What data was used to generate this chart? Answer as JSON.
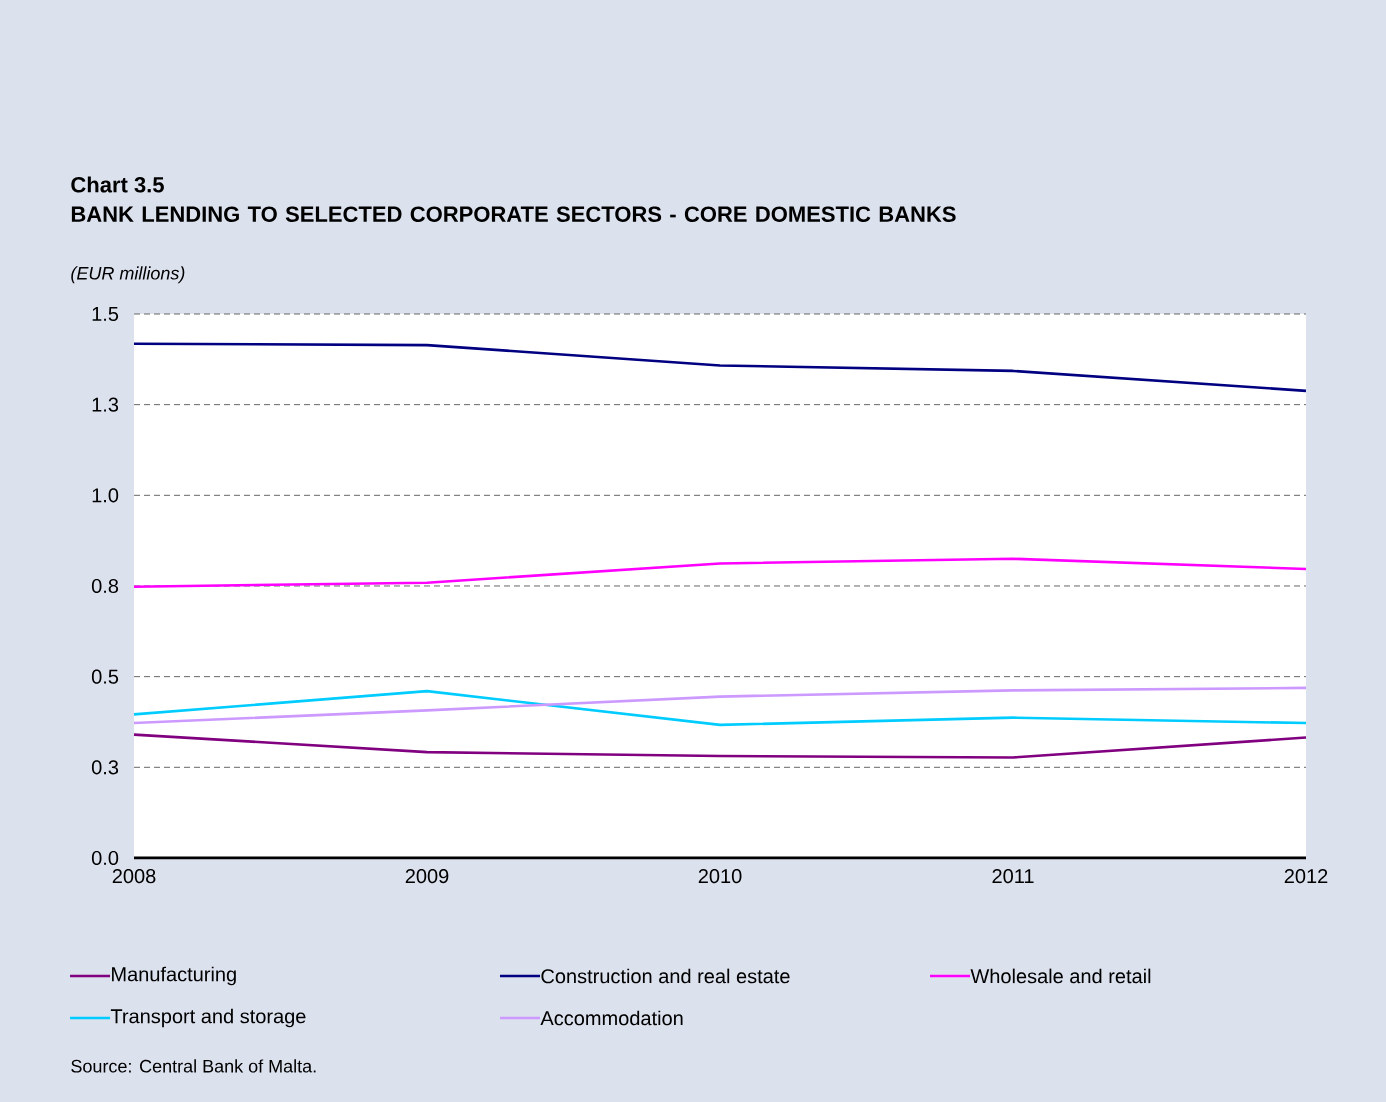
{
  "chart_data": {
    "type": "line",
    "title": "Chart 3.5",
    "subtitle": "BANK LENDING TO SELECTED CORPORATE SECTORS - CORE DOMESTIC BANKS",
    "ylabel": "(EUR millions)",
    "x": [
      2008,
      2009,
      2010,
      2011,
      2012
    ],
    "series": [
      {
        "name": "Manufacturing",
        "color": "#800080",
        "values": [
          0.34,
          0.292,
          0.281,
          0.277,
          0.332
        ]
      },
      {
        "name": "Construction and real estate",
        "color": "#000080",
        "values": [
          1.418,
          1.414,
          1.358,
          1.343,
          1.288
        ]
      },
      {
        "name": "Wholesale and retail",
        "color": "#ff00ff",
        "values": [
          0.748,
          0.759,
          0.812,
          0.825,
          0.797
        ]
      },
      {
        "name": "Transport and storage",
        "color": "#00ccff",
        "values": [
          0.396,
          0.46,
          0.367,
          0.387,
          0.372
        ]
      },
      {
        "name": "Accommodation",
        "color": "#cc99ff",
        "values": [
          0.372,
          0.407,
          0.445,
          0.462,
          0.469
        ]
      }
    ],
    "xlim": [
      2008,
      2012
    ],
    "xticks": [
      2008,
      2009,
      2010,
      2011,
      2012
    ],
    "ylim": [
      0,
      1.5
    ],
    "yticks": [
      {
        "value": 0,
        "label": "0.0"
      },
      {
        "value": 0.25,
        "label": "0.3"
      },
      {
        "value": 0.5,
        "label": "0.5"
      },
      {
        "value": 0.75,
        "label": "0.8"
      },
      {
        "value": 1.0,
        "label": "1.0"
      },
      {
        "value": 1.25,
        "label": "1.3"
      },
      {
        "value": 1.5,
        "label": "1.5"
      }
    ],
    "grid": "y",
    "legend": "bottom",
    "line_style": "solid",
    "annotations": [
      "Source: Central Bank of Malta."
    ]
  }
}
